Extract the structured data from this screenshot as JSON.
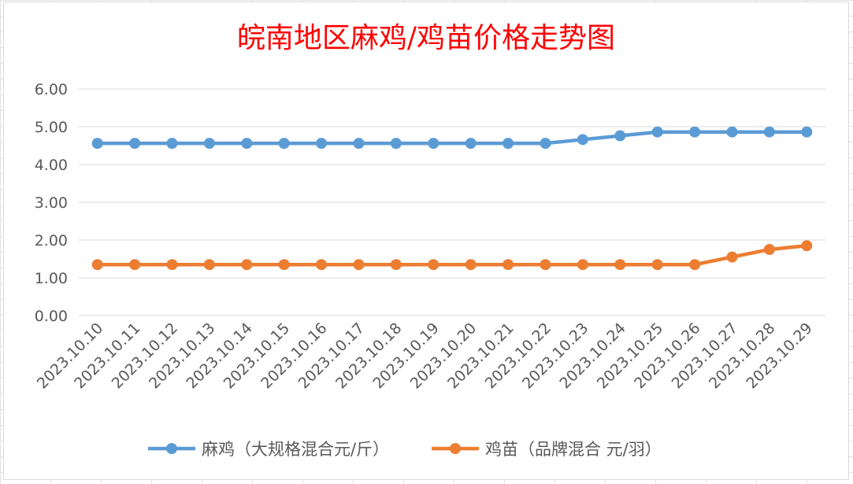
{
  "chart_data": {
    "type": "line",
    "title": "皖南地区麻鸡/鸡苗价格走势图",
    "xlabel": "",
    "ylabel": "",
    "ylim": [
      0,
      6
    ],
    "yticks": [
      "0.00",
      "1.00",
      "2.00",
      "3.00",
      "4.00",
      "5.00",
      "6.00"
    ],
    "grid": true,
    "legend_position": "bottom",
    "categories": [
      "2023.10.10",
      "2023.10.11",
      "2023.10.12",
      "2023.10.13",
      "2023.10.14",
      "2023.10.15",
      "2023.10.16",
      "2023.10.17",
      "2023.10.18",
      "2023.10.19",
      "2023.10.20",
      "2023.10.21",
      "2023.10.22",
      "2023.10.23",
      "2023.10.24",
      "2023.10.25",
      "2023.10.26",
      "2023.10.27",
      "2023.10.28",
      "2023.10.29"
    ],
    "series": [
      {
        "name": "麻鸡（大规格混合元/斤）",
        "color": "#5b9bd5",
        "values": [
          4.56,
          4.56,
          4.56,
          4.56,
          4.56,
          4.56,
          4.56,
          4.56,
          4.56,
          4.56,
          4.56,
          4.56,
          4.56,
          4.66,
          4.76,
          4.86,
          4.86,
          4.86,
          4.86,
          4.86
        ]
      },
      {
        "name": "鸡苗（品牌混合 元/羽）",
        "color": "#ed7d31",
        "values": [
          1.35,
          1.35,
          1.35,
          1.35,
          1.35,
          1.35,
          1.35,
          1.35,
          1.35,
          1.35,
          1.35,
          1.35,
          1.35,
          1.35,
          1.35,
          1.35,
          1.35,
          1.55,
          1.75,
          1.85
        ]
      }
    ]
  }
}
